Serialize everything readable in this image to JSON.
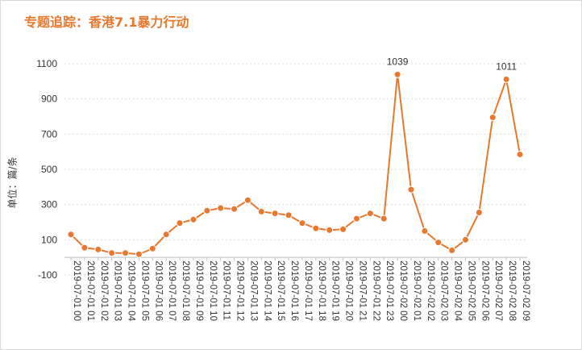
{
  "chart_data": {
    "type": "line",
    "title": "专题追踪：香港7.1暴力行动",
    "ylabel": "单位：篇/条",
    "xlabel": "",
    "ylim": [
      -100,
      1100
    ],
    "yticks": [
      -100,
      100,
      300,
      500,
      700,
      900,
      1100
    ],
    "grid": "horizontal dotted",
    "legend": "none",
    "color": "#e8782e",
    "categories": [
      "2019-07-01 00",
      "2019-07-01 01",
      "2019-07-01 02",
      "2019-07-01 03",
      "2019-07-01 04",
      "2019-07-01 05",
      "2019-07-01 06",
      "2019-07-01 07",
      "2019-07-01 08",
      "2019-07-01 09",
      "2019-07-01 10",
      "2019-07-01 11",
      "2019-07-01 12",
      "2019-07-01 13",
      "2019-07-01 14",
      "2019-07-01 15",
      "2019-07-01 16",
      "2019-07-01 17",
      "2019-07-01 18",
      "2019-07-01 19",
      "2019-07-01 20",
      "2019-07-01 21",
      "2019-07-01 22",
      "2019-07-01 23",
      "2019-07-02 00",
      "2019-07-02 01",
      "2019-07-02 02",
      "2019-07-02 03",
      "2019-07-02 04",
      "2019-07-02 05",
      "2019-07-02 06",
      "2019-07-02 07",
      "2019-07-02 08",
      "2019-07-02 09"
    ],
    "values": [
      130,
      55,
      45,
      25,
      25,
      18,
      50,
      130,
      195,
      215,
      265,
      280,
      275,
      325,
      260,
      250,
      240,
      195,
      165,
      155,
      160,
      220,
      250,
      220,
      1039,
      385,
      150,
      85,
      40,
      100,
      255,
      795,
      1011,
      585
    ],
    "data_labels": [
      {
        "index": 24,
        "text": "1039"
      },
      {
        "index": 32,
        "text": "1011"
      }
    ]
  }
}
